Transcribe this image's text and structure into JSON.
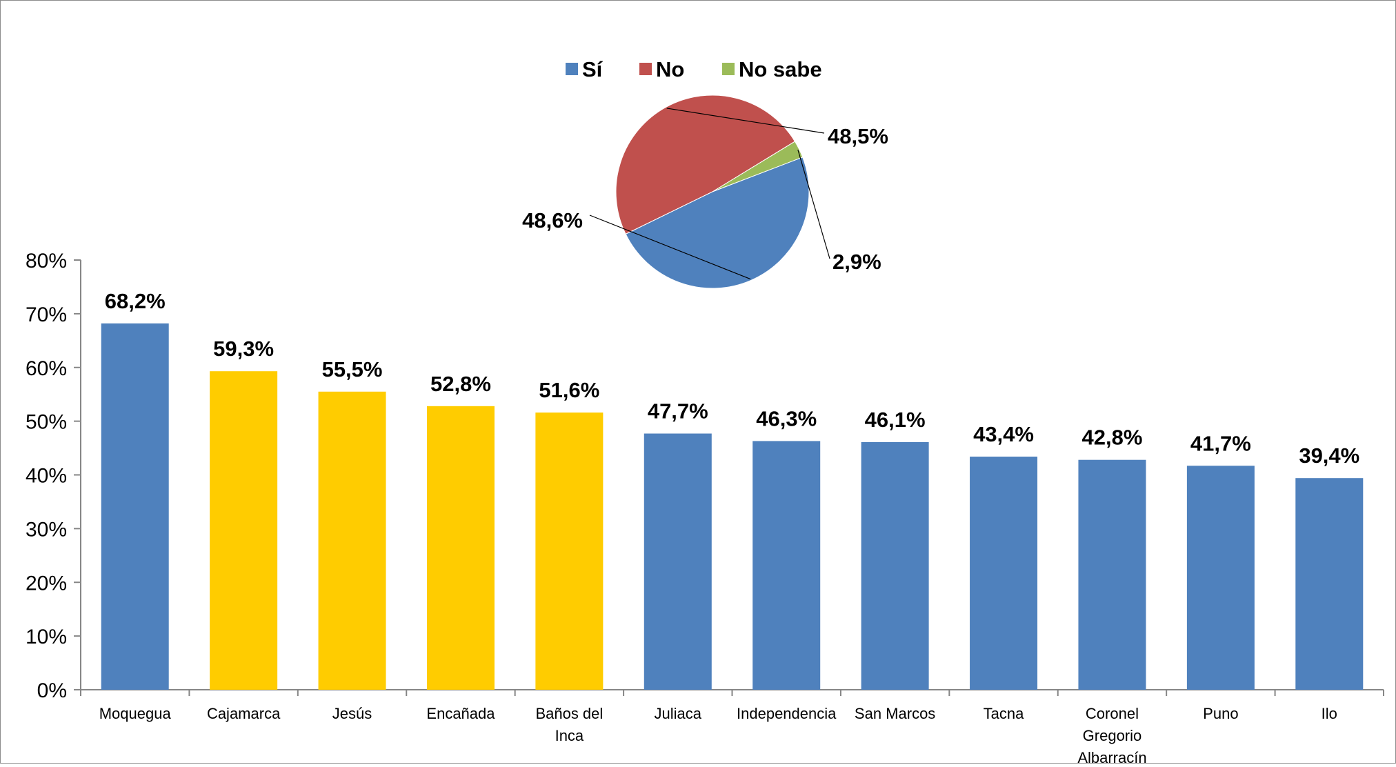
{
  "chart_data": [
    {
      "type": "bar",
      "categories": [
        "Moquegua",
        "Cajamarca",
        "Jesús",
        "Encañada",
        "Baños del Inca",
        "Juliaca",
        "Independencia",
        "San Marcos",
        "Tacna",
        "Coronel Gregorio Albarracín",
        "Puno",
        "Ilo"
      ],
      "category_lines": [
        [
          "Moquegua"
        ],
        [
          "Cajamarca"
        ],
        [
          "Jesús"
        ],
        [
          "Encañada"
        ],
        [
          "Baños del",
          "Inca"
        ],
        [
          "Juliaca"
        ],
        [
          "Independencia"
        ],
        [
          "San Marcos"
        ],
        [
          "Tacna"
        ],
        [
          "Coronel",
          "Gregorio",
          "Albarracín"
        ],
        [
          "Puno"
        ],
        [
          "Ilo"
        ]
      ],
      "values": [
        68.2,
        59.3,
        55.5,
        52.8,
        51.6,
        47.7,
        46.3,
        46.1,
        43.4,
        42.8,
        41.7,
        39.4
      ],
      "value_labels": [
        "68,2%",
        "59,3%",
        "55,5%",
        "52,8%",
        "51,6%",
        "47,7%",
        "46,3%",
        "46,1%",
        "43,4%",
        "42,8%",
        "41,7%",
        "39,4%"
      ],
      "bar_colors": [
        "#4F81BD",
        "#FFCC00",
        "#FFCC00",
        "#FFCC00",
        "#FFCC00",
        "#4F81BD",
        "#4F81BD",
        "#4F81BD",
        "#4F81BD",
        "#4F81BD",
        "#4F81BD",
        "#4F81BD"
      ],
      "ylim": [
        0,
        80
      ],
      "yticks": [
        0,
        10,
        20,
        30,
        40,
        50,
        60,
        70,
        80
      ],
      "ytick_labels": [
        "0%",
        "10%",
        "20%",
        "30%",
        "40%",
        "50%",
        "60%",
        "70%",
        "80%"
      ],
      "grid": false,
      "title": "",
      "xlabel": "",
      "ylabel": ""
    },
    {
      "type": "pie",
      "labels": [
        "Sí",
        "No",
        "No sabe"
      ],
      "values": [
        48.6,
        48.5,
        2.9
      ],
      "value_labels": [
        "48,6%",
        "48,5%",
        "2,9%"
      ],
      "colors": [
        "#4F81BD",
        "#C0504D",
        "#9BBB59"
      ],
      "legend_position": "top"
    }
  ]
}
